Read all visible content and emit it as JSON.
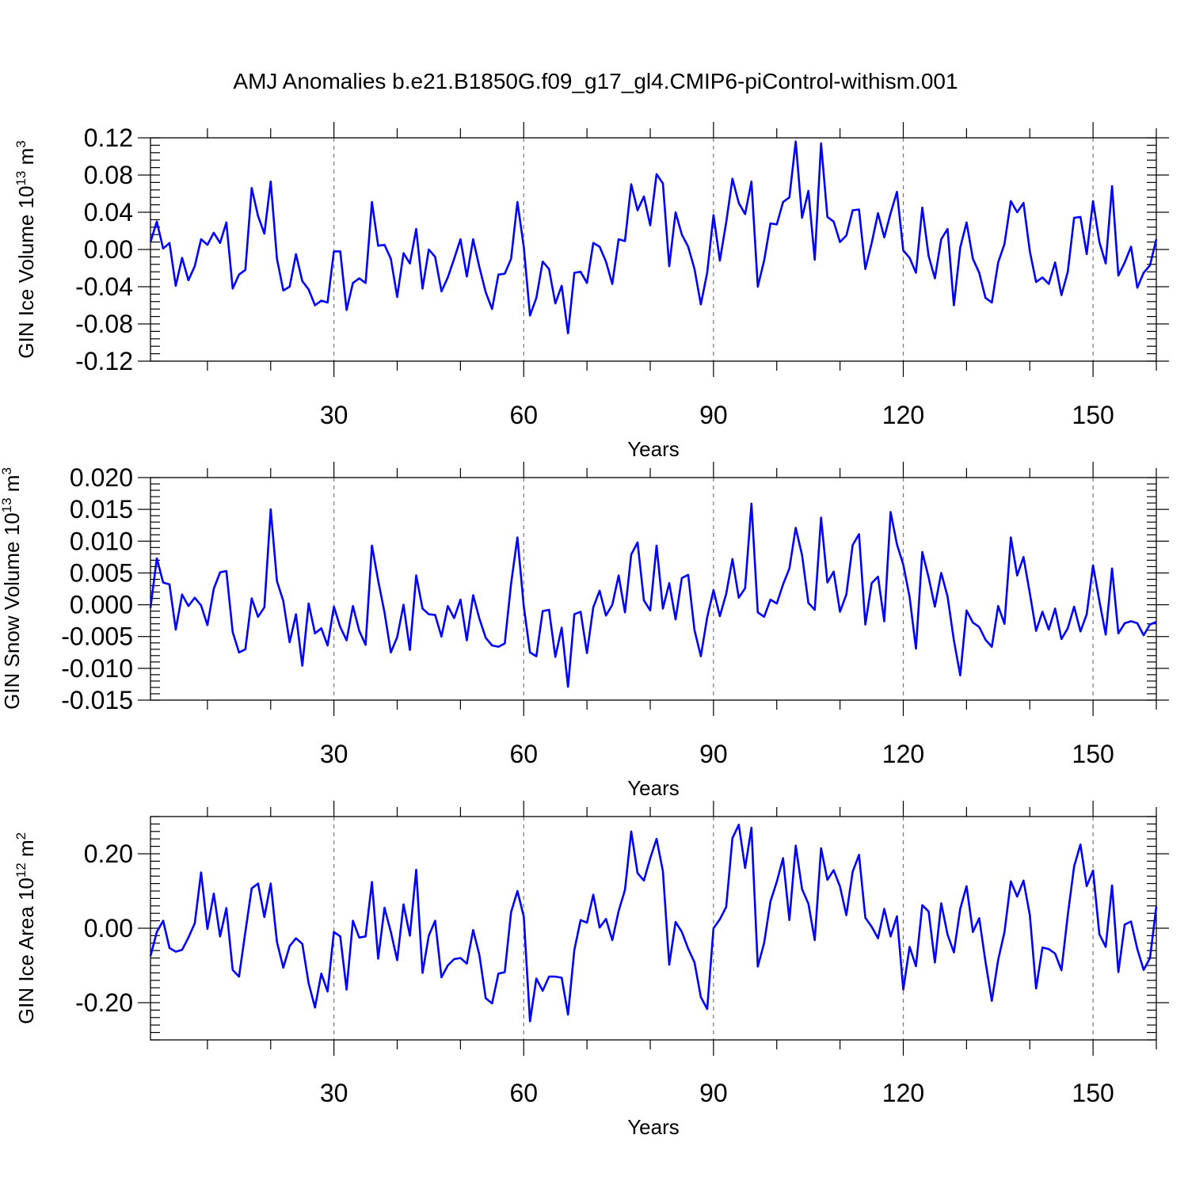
{
  "title": "AMJ Anomalies b.e21.B1850G.f09_g17_gl4.CMIP6-piControl-withism.001",
  "chart_data": [
    {
      "type": "line",
      "xlabel": "Years",
      "ylabel": "GIN Ice Volume 10",
      "ylabel_sup": "13",
      "ylabel_unit": " m",
      "ylabel_unit_sup": "3",
      "xlim": [
        1,
        160
      ],
      "ylim": [
        -0.12,
        0.12
      ],
      "xticks": [
        30,
        60,
        90,
        120,
        150
      ],
      "xtick_labels": [
        "30",
        "60",
        "90",
        "120",
        "150"
      ],
      "yticks": [
        -0.12,
        -0.08,
        -0.04,
        0.0,
        0.04,
        0.08,
        0.12
      ],
      "ytick_labels": [
        "-0.12",
        "-0.08",
        "-0.04",
        "0.00",
        "0.04",
        "0.08",
        "0.12"
      ],
      "grid": "vertical dashed lines at x ticks",
      "series": [
        {
          "color": "#0000ff",
          "x_start": 1,
          "values": [
            0.008,
            0.03,
            0.001,
            0.007,
            -0.039,
            -0.009,
            -0.033,
            -0.018,
            0.011,
            0.005,
            0.018,
            0.007,
            0.029,
            -0.042,
            -0.027,
            -0.022,
            0.066,
            0.036,
            0.017,
            0.073,
            -0.01,
            -0.044,
            -0.04,
            -0.005,
            -0.034,
            -0.043,
            -0.06,
            -0.055,
            -0.057,
            -0.002,
            -0.002,
            -0.065,
            -0.036,
            -0.031,
            -0.036,
            0.051,
            0.004,
            0.005,
            -0.01,
            -0.051,
            -0.004,
            -0.015,
            0.022,
            -0.042,
            0.0,
            -0.008,
            -0.045,
            -0.03,
            -0.01,
            0.011,
            -0.029,
            0.011,
            -0.019,
            -0.046,
            -0.064,
            -0.027,
            -0.026,
            -0.01,
            0.051,
            0.003,
            -0.071,
            -0.052,
            -0.013,
            -0.021,
            -0.058,
            -0.039,
            -0.09,
            -0.025,
            -0.024,
            -0.036,
            0.007,
            0.003,
            -0.013,
            -0.037,
            0.011,
            0.009,
            0.07,
            0.042,
            0.057,
            0.026,
            0.081,
            0.071,
            -0.018,
            0.04,
            0.016,
            0.003,
            -0.021,
            -0.059,
            -0.025,
            0.037,
            -0.012,
            0.029,
            0.076,
            0.05,
            0.038,
            0.073,
            -0.04,
            -0.012,
            0.028,
            0.027,
            0.051,
            0.056,
            0.116,
            0.034,
            0.063,
            -0.011,
            0.114,
            0.035,
            0.03,
            0.008,
            0.015,
            0.042,
            0.043,
            -0.021,
            0.007,
            0.039,
            0.013,
            0.039,
            0.062,
            -0.001,
            -0.009,
            -0.025,
            0.045,
            -0.007,
            -0.031,
            0.011,
            0.022,
            -0.06,
            0.002,
            0.029,
            -0.01,
            -0.025,
            -0.052,
            -0.057,
            -0.014,
            0.006,
            0.052,
            0.04,
            0.05,
            -0.002,
            -0.035,
            -0.03,
            -0.037,
            -0.014,
            -0.049,
            -0.024,
            0.034,
            0.035,
            -0.005,
            0.052,
            0.008,
            -0.015,
            0.068,
            -0.028,
            -0.014,
            0.003,
            -0.041,
            -0.025,
            -0.017,
            0.011
          ]
        }
      ]
    },
    {
      "type": "line",
      "xlabel": "Years",
      "ylabel": "GIN Snow Volume 10",
      "ylabel_sup": "13",
      "ylabel_unit": " m",
      "ylabel_unit_sup": "3",
      "xlim": [
        1,
        160
      ],
      "ylim": [
        -0.015,
        0.02
      ],
      "xticks": [
        30,
        60,
        90,
        120,
        150
      ],
      "xtick_labels": [
        "30",
        "60",
        "90",
        "120",
        "150"
      ],
      "yticks": [
        -0.015,
        -0.01,
        -0.005,
        0.0,
        0.005,
        0.01,
        0.015,
        0.02
      ],
      "ytick_labels": [
        "-0.015",
        "-0.010",
        "-0.005",
        "0.000",
        "0.005",
        "0.010",
        "0.015",
        "0.020"
      ],
      "grid": "vertical dashed lines at x ticks",
      "series": [
        {
          "color": "#0000ff",
          "x_start": 1,
          "values": [
            -0.0005,
            0.0073,
            0.0035,
            0.0032,
            -0.0039,
            0.0016,
            -0.0002,
            0.0011,
            -0.0001,
            -0.0032,
            0.0025,
            0.0051,
            0.0053,
            -0.0043,
            -0.0075,
            -0.007,
            0.001,
            -0.0019,
            -0.0004,
            0.015,
            0.0037,
            0.0006,
            -0.0059,
            -0.0015,
            -0.0096,
            0.0002,
            -0.0045,
            -0.0037,
            -0.0064,
            -0.0003,
            -0.0035,
            -0.0056,
            -0.0002,
            -0.0041,
            -0.0063,
            0.0093,
            0.0038,
            -0.0012,
            -0.0075,
            -0.0051,
            0.0,
            -0.0071,
            0.0046,
            -0.0006,
            -0.0015,
            -0.0016,
            -0.005,
            -0.0002,
            -0.0021,
            0.0008,
            -0.0056,
            0.0015,
            -0.0022,
            -0.0052,
            -0.0064,
            -0.0066,
            -0.0061,
            0.0033,
            0.0106,
            -0.0002,
            -0.0075,
            -0.0081,
            -0.001,
            -0.0008,
            -0.0082,
            -0.0036,
            -0.0129,
            -0.0015,
            -0.0011,
            -0.0076,
            -0.0004,
            0.0022,
            -0.0017,
            0.0,
            0.0046,
            -0.0012,
            0.0079,
            0.0098,
            0.0007,
            -0.0009,
            0.0093,
            -0.0006,
            0.0034,
            -0.0023,
            0.0042,
            0.0047,
            -0.004,
            -0.0081,
            -0.002,
            0.0023,
            -0.0018,
            0.0017,
            0.0072,
            0.0011,
            0.0026,
            0.0159,
            -0.0012,
            -0.0019,
            0.0008,
            0.0002,
            0.0032,
            0.0057,
            0.0121,
            0.0078,
            0.0003,
            -0.0008,
            0.0137,
            0.0035,
            0.0052,
            -0.0011,
            0.0016,
            0.0094,
            0.0111,
            -0.0031,
            0.0034,
            0.0044,
            -0.0026,
            0.0146,
            0.0095,
            0.0063,
            0.0012,
            -0.0069,
            0.0083,
            0.0043,
            -0.0003,
            0.005,
            0.0013,
            -0.0056,
            -0.0111,
            -0.0009,
            -0.0028,
            -0.0035,
            -0.0055,
            -0.0066,
            -0.0002,
            -0.003,
            0.0106,
            0.0046,
            0.0075,
            0.0018,
            -0.0041,
            -0.0011,
            -0.0039,
            -0.0006,
            -0.0054,
            -0.0037,
            -0.0003,
            -0.0042,
            -0.0015,
            0.0062,
            0.0006,
            -0.0047,
            0.0057,
            -0.0045,
            -0.0029,
            -0.0026,
            -0.0029,
            -0.0048,
            -0.0031,
            -0.0027
          ]
        }
      ]
    },
    {
      "type": "line",
      "xlabel": "Years",
      "ylabel": "GIN Ice Area 10",
      "ylabel_sup": "12",
      "ylabel_unit": " m",
      "ylabel_unit_sup": "2",
      "xlim": [
        1,
        160
      ],
      "ylim": [
        -0.3,
        0.3
      ],
      "xticks": [
        30,
        60,
        90,
        120,
        150
      ],
      "xtick_labels": [
        "30",
        "60",
        "90",
        "120",
        "150"
      ],
      "yticks": [
        -0.2,
        0.0,
        0.2
      ],
      "ytick_labels": [
        "-0.20",
        "0.00",
        "0.20"
      ],
      "grid": "vertical dashed lines at x ticks",
      "series": [
        {
          "color": "#0000ff",
          "x_start": 1,
          "values": [
            -0.075,
            -0.01,
            0.02,
            -0.053,
            -0.063,
            -0.058,
            -0.025,
            0.013,
            0.15,
            -0.002,
            0.093,
            -0.022,
            0.054,
            -0.112,
            -0.13,
            -0.01,
            0.107,
            0.12,
            0.03,
            0.12,
            -0.037,
            -0.106,
            -0.048,
            -0.027,
            -0.042,
            -0.148,
            -0.213,
            -0.122,
            -0.17,
            -0.01,
            -0.022,
            -0.165,
            0.02,
            -0.025,
            -0.022,
            0.124,
            -0.082,
            0.055,
            -0.01,
            -0.086,
            0.064,
            -0.02,
            0.157,
            -0.12,
            -0.02,
            0.02,
            -0.132,
            -0.1,
            -0.083,
            -0.08,
            -0.095,
            -0.005,
            -0.072,
            -0.188,
            -0.202,
            -0.122,
            -0.118,
            0.043,
            0.1,
            0.032,
            -0.25,
            -0.135,
            -0.168,
            -0.13,
            -0.13,
            -0.133,
            -0.232,
            -0.058,
            0.022,
            0.015,
            0.09,
            0.002,
            0.025,
            -0.032,
            0.046,
            0.103,
            0.26,
            0.148,
            0.128,
            0.188,
            0.24,
            0.153,
            -0.098,
            0.017,
            -0.01,
            -0.055,
            -0.092,
            -0.185,
            -0.217,
            0.0,
            0.024,
            0.057,
            0.242,
            0.278,
            0.162,
            0.27,
            -0.103,
            -0.04,
            0.072,
            0.125,
            0.188,
            0.022,
            0.222,
            0.105,
            0.066,
            -0.032,
            0.215,
            0.13,
            0.156,
            0.112,
            0.035,
            0.152,
            0.197,
            0.028,
            0.004,
            -0.027,
            0.052,
            -0.022,
            0.032,
            -0.165,
            -0.05,
            -0.102,
            0.062,
            0.045,
            -0.092,
            0.067,
            -0.017,
            -0.065,
            0.052,
            0.113,
            -0.01,
            0.027,
            -0.09,
            -0.195,
            -0.085,
            -0.01,
            0.126,
            0.085,
            0.128,
            0.035,
            -0.162,
            -0.052,
            -0.056,
            -0.068,
            -0.113,
            0.035,
            0.166,
            0.225,
            0.113,
            0.155,
            -0.016,
            -0.05,
            0.115,
            -0.118,
            0.01,
            0.018,
            -0.056,
            -0.112,
            -0.08,
            0.058
          ]
        }
      ]
    }
  ]
}
